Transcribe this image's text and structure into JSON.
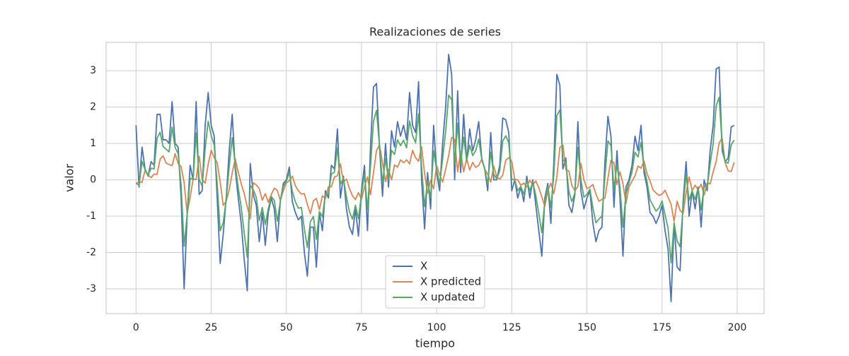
{
  "chart_data": {
    "type": "line",
    "title": "Realizaciones de series",
    "x_label": "tiempo",
    "y_label": "valor",
    "x": [
      0,
      1,
      2,
      3,
      4,
      5,
      6,
      7,
      8,
      9,
      10,
      11,
      12,
      13,
      14,
      15,
      16,
      17,
      18,
      19,
      20,
      21,
      22,
      23,
      24,
      25,
      26,
      27,
      28,
      29,
      30,
      31,
      32,
      33,
      34,
      35,
      36,
      37,
      38,
      39,
      40,
      41,
      42,
      43,
      44,
      45,
      46,
      47,
      48,
      49,
      50,
      51,
      52,
      53,
      54,
      55,
      56,
      57,
      58,
      59,
      60,
      61,
      62,
      63,
      64,
      65,
      66,
      67,
      68,
      69,
      70,
      71,
      72,
      73,
      74,
      75,
      76,
      77,
      78,
      79,
      80,
      81,
      82,
      83,
      84,
      85,
      86,
      87,
      88,
      89,
      90,
      91,
      92,
      93,
      94,
      95,
      96,
      97,
      98,
      99,
      100,
      101,
      102,
      103,
      104,
      105,
      106,
      107,
      108,
      109,
      110,
      111,
      112,
      113,
      114,
      115,
      116,
      117,
      118,
      119,
      120,
      121,
      122,
      123,
      124,
      125,
      126,
      127,
      128,
      129,
      130,
      131,
      132,
      133,
      134,
      135,
      136,
      137,
      138,
      139,
      140,
      141,
      142,
      143,
      144,
      145,
      146,
      147,
      148,
      149,
      150,
      151,
      152,
      153,
      154,
      155,
      156,
      157,
      158,
      159,
      160,
      161,
      162,
      163,
      164,
      165,
      166,
      167,
      168,
      169,
      170,
      171,
      172,
      173,
      174,
      175,
      176,
      177,
      178,
      179,
      180,
      181,
      182,
      183,
      184,
      185,
      186,
      187,
      188,
      189,
      190,
      191,
      192,
      193,
      194,
      195,
      196,
      197,
      198,
      199
    ],
    "series": [
      {
        "name": "X",
        "color": "#4c72b0",
        "values": [
          1.5,
          -0.2,
          0.9,
          0.3,
          0.1,
          0.5,
          0.4,
          1.8,
          1.8,
          1.1,
          1.1,
          1.0,
          2.15,
          1.0,
          0.9,
          -0.5,
          -3.0,
          -1.0,
          0.4,
          0.0,
          2.15,
          -0.4,
          -0.3,
          1.5,
          2.4,
          1.5,
          1.2,
          -0.5,
          -2.3,
          -1.5,
          -0.5,
          0.8,
          1.8,
          0.3,
          -0.5,
          -1.2,
          -2.2,
          -3.05,
          0.45,
          -0.4,
          -0.7,
          -1.7,
          -0.9,
          -1.8,
          -0.9,
          -0.5,
          -0.8,
          -1.7,
          -0.6,
          -0.1,
          0.0,
          0.35,
          -0.6,
          -0.9,
          -1.1,
          -1.0,
          -2.0,
          -2.65,
          -1.3,
          -1.3,
          -2.4,
          -0.9,
          -1.4,
          -0.3,
          -0.5,
          0.4,
          0.3,
          1.4,
          -0.5,
          0.1,
          -0.8,
          -1.3,
          -1.5,
          -0.8,
          -1.55,
          -0.3,
          0.4,
          -1.4,
          0.9,
          2.55,
          2.65,
          0.9,
          -0.45,
          1.0,
          -0.2,
          1.35,
          0.9,
          1.6,
          1.2,
          1.5,
          1.1,
          2.4,
          1.5,
          1.3,
          2.7,
          0.0,
          -1.35,
          0.2,
          -0.8,
          1.5,
          0.2,
          -0.3,
          1.0,
          2.0,
          3.45,
          2.9,
          0.0,
          2.45,
          0.2,
          1.8,
          0.5,
          1.4,
          0.8,
          1.1,
          1.6,
          0.6,
          0.3,
          -0.3,
          1.3,
          0.0,
          0.0,
          0.4,
          1.7,
          1.65,
          1.3,
          -0.3,
          0.0,
          -0.5,
          -0.2,
          -0.6,
          0.1,
          -0.5,
          0.0,
          -0.7,
          -1.4,
          -2.1,
          -0.5,
          -0.1,
          -1.2,
          0.5,
          2.9,
          2.6,
          0.3,
          0.6,
          -0.7,
          -0.9,
          -0.4,
          1.6,
          -0.3,
          -0.8,
          -0.5,
          -0.3,
          -1.2,
          -1.7,
          -1.4,
          -1.3,
          0.5,
          1.75,
          1.2,
          -0.75,
          0.8,
          -0.5,
          -2.1,
          -0.2,
          0.0,
          0.4,
          1.2,
          0.8,
          1.5,
          0.2,
          -0.2,
          -0.9,
          -1.0,
          -1.2,
          -1.0,
          -0.7,
          -1.4,
          -1.9,
          -3.35,
          -1.2,
          -2.4,
          -2.5,
          -0.6,
          0.5,
          -1.0,
          -0.3,
          -0.8,
          -0.2,
          -1.3,
          0.0,
          -0.3,
          0.8,
          1.5,
          3.05,
          3.1,
          0.8,
          0.5,
          0.6,
          1.45,
          1.5
        ]
      },
      {
        "name": "X predicted",
        "color": "#dd8452",
        "values": [
          -0.1,
          -0.05,
          -0.07,
          0.26,
          0.14,
          0.06,
          0.16,
          0.15,
          0.57,
          0.66,
          0.46,
          0.42,
          0.39,
          0.72,
          0.45,
          0.36,
          -0.08,
          -0.92,
          -0.48,
          0.02,
          0.01,
          0.65,
          0.01,
          -0.09,
          0.43,
          0.81,
          0.61,
          0.48,
          -0.06,
          -0.7,
          -0.59,
          -0.27,
          0.19,
          0.58,
          0.21,
          -0.11,
          -0.38,
          -0.74,
          -1.07,
          -0.08,
          -0.14,
          -0.24,
          -0.56,
          -0.38,
          -0.62,
          -0.4,
          -0.23,
          -0.29,
          -0.57,
          -0.3,
          -0.09,
          -0.02,
          0.1,
          -0.16,
          -0.3,
          -0.39,
          -0.38,
          -0.68,
          -0.93,
          -0.58,
          -0.51,
          -0.82,
          -0.44,
          -0.51,
          -0.19,
          -0.19,
          0.08,
          0.11,
          0.44,
          -0.06,
          0.02,
          -0.24,
          -0.44,
          -0.54,
          -0.35,
          -0.54,
          -0.2,
          0.08,
          -0.41,
          0.19,
          0.81,
          0.96,
          0.46,
          -0.05,
          0.29,
          0.0,
          0.41,
          0.35,
          0.55,
          0.47,
          0.55,
          0.44,
          0.81,
          0.61,
          0.51,
          0.91,
          0.18,
          -0.37,
          -0.02,
          -0.25,
          0.4,
          0.14,
          -0.06,
          0.29,
          0.66,
          1.17,
          1.11,
          0.22,
          0.78,
          0.22,
          0.59,
          0.27,
          0.48,
          0.34,
          0.4,
          0.56,
          0.29,
          0.15,
          -0.06,
          0.38,
          0.08,
          0.02,
          0.13,
          0.54,
          0.61,
          0.51,
          0.01,
          0.0,
          -0.15,
          -0.09,
          -0.2,
          -0.01,
          -0.15,
          -0.03,
          -0.22,
          -0.47,
          -0.73,
          -0.3,
          -0.09,
          -0.38,
          0.08,
          0.89,
          0.96,
          0.28,
          0.24,
          -0.16,
          -0.3,
          -0.18,
          0.45,
          0.0,
          -0.24,
          -0.2,
          -0.13,
          -0.39,
          -0.59,
          -0.54,
          -0.5,
          0.05,
          0.54,
          0.47,
          -0.13,
          0.22,
          -0.11,
          -0.65,
          -0.19,
          -0.04,
          0.11,
          0.38,
          0.32,
          0.52,
          0.17,
          -0.03,
          -0.28,
          -0.36,
          -0.43,
          -0.39,
          -0.29,
          -0.48,
          -0.67,
          -1.14,
          -0.59,
          -0.84,
          -0.92,
          -0.37,
          0.08,
          -0.29,
          -0.15,
          -0.27,
          -0.12,
          -0.42,
          -0.09,
          -0.11,
          0.22,
          0.5,
          1.02,
          1.14,
          0.47,
          0.25,
          0.23,
          0.48
        ]
      },
      {
        "name": "X updated",
        "color": "#55a868",
        "values": [
          -0.1,
          -0.14,
          0.51,
          0.28,
          0.12,
          0.32,
          0.3,
          1.14,
          1.31,
          0.92,
          0.84,
          0.77,
          1.45,
          0.89,
          0.72,
          -0.16,
          -1.83,
          -0.97,
          0.05,
          0.01,
          1.29,
          0.02,
          -0.18,
          0.86,
          1.61,
          1.22,
          0.96,
          -0.11,
          -1.4,
          -1.18,
          -0.54,
          0.37,
          1.16,
          0.41,
          -0.22,
          -0.76,
          -1.47,
          -2.13,
          -0.16,
          -0.27,
          -0.48,
          -1.12,
          -0.76,
          -1.23,
          -0.79,
          -0.46,
          -0.57,
          -1.14,
          -0.59,
          -0.18,
          -0.04,
          0.2,
          -0.32,
          -0.6,
          -0.78,
          -0.76,
          -1.35,
          -1.86,
          -1.15,
          -1.01,
          -1.64,
          -0.87,
          -1.02,
          -0.38,
          -0.38,
          0.16,
          0.21,
          0.88,
          -0.12,
          0.04,
          -0.47,
          -0.88,
          -1.08,
          -0.7,
          -1.07,
          -0.4,
          0.16,
          -0.81,
          0.38,
          1.61,
          1.91,
          0.92,
          -0.09,
          0.58,
          0.0,
          0.81,
          0.7,
          1.1,
          0.94,
          1.09,
          0.88,
          1.62,
          1.22,
          1.02,
          1.82,
          0.36,
          -0.74,
          -0.03,
          -0.49,
          0.8,
          0.28,
          -0.12,
          0.58,
          1.32,
          2.33,
          2.21,
          0.44,
          1.56,
          0.43,
          1.17,
          0.54,
          0.95,
          0.67,
          0.8,
          1.12,
          0.58,
          0.3,
          -0.12,
          0.76,
          0.15,
          0.03,
          0.25,
          1.07,
          1.21,
          1.02,
          0.02,
          0.0,
          -0.3,
          -0.18,
          -0.4,
          -0.02,
          -0.3,
          -0.06,
          -0.43,
          -0.93,
          -1.45,
          -0.59,
          -0.18,
          -0.76,
          0.15,
          1.77,
          1.92,
          0.56,
          0.47,
          -0.32,
          -0.6,
          -0.36,
          0.89,
          0.0,
          -0.48,
          -0.4,
          -0.26,
          -0.77,
          -1.18,
          -1.08,
          -1.0,
          0.1,
          1.07,
          0.94,
          -0.26,
          0.43,
          -0.21,
          -1.3,
          -0.38,
          -0.08,
          0.22,
          0.76,
          0.63,
          1.03,
          0.33,
          -0.05,
          -0.55,
          -0.71,
          -0.86,
          -0.77,
          -0.58,
          -0.96,
          -1.33,
          -2.28,
          -1.18,
          -1.68,
          -1.84,
          -0.73,
          0.15,
          -0.57,
          -0.3,
          -0.54,
          -0.23,
          -0.83,
          -0.17,
          -0.22,
          0.44,
          0.99,
          2.03,
          2.27,
          0.94,
          0.49,
          0.46,
          0.96,
          1.09
        ]
      }
    ],
    "xlim": [
      -9.95,
      208.95
    ],
    "ylim": [
      -3.68,
      3.78
    ],
    "xticks": [
      0,
      25,
      50,
      75,
      100,
      125,
      150,
      175,
      200
    ],
    "yticks": [
      -3,
      -2,
      -1,
      0,
      1,
      2,
      3
    ],
    "grid": true,
    "legend": "lower center"
  }
}
